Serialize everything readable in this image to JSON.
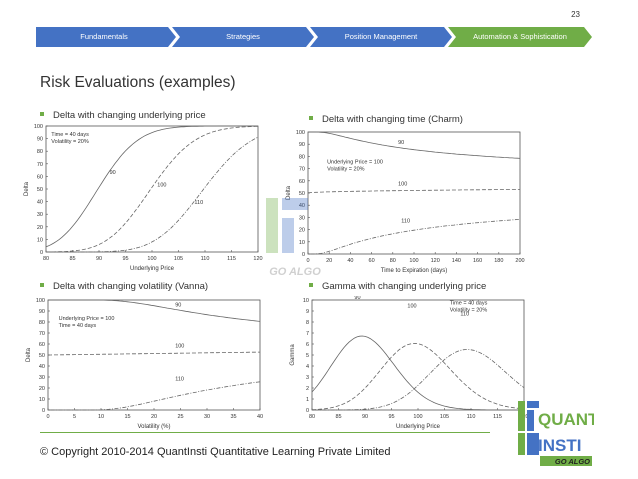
{
  "page_number": "23",
  "nav": {
    "items": [
      {
        "label": "Fundamentals"
      },
      {
        "label": "Strategies"
      },
      {
        "label": "Position Management"
      },
      {
        "label": "Automation & Sophistication"
      }
    ],
    "active_index": 3,
    "colors": {
      "inactive": "#4472c4",
      "active": "#70ad47"
    }
  },
  "title": "Risk Evaluations (examples)",
  "bullets": [
    "Delta with changing underlying price",
    "Delta with changing time (Charm)",
    "Delta with changing volatility (Vanna)",
    "Gamma with changing underlying price"
  ],
  "charts": {
    "delta_price": {
      "ylabel": "Delta",
      "xlabel": "Underlying Price",
      "x_ticks": [
        "80",
        "85",
        "90",
        "95",
        "100",
        "105",
        "110",
        "115",
        "120"
      ],
      "y_ticks": [
        "0",
        "10",
        "20",
        "30",
        "40",
        "50",
        "60",
        "70",
        "80",
        "90",
        "100"
      ],
      "legend": [
        "Time = 40 days",
        "Volatility = 20%"
      ],
      "curve_labels": [
        "90",
        "100",
        "110"
      ]
    },
    "delta_time": {
      "ylabel": "Delta",
      "xlabel": "Time to Expiration (days)",
      "x_ticks": [
        "0",
        "20",
        "40",
        "60",
        "80",
        "100",
        "120",
        "140",
        "160",
        "180",
        "200"
      ],
      "y_ticks": [
        "0",
        "10",
        "20",
        "30",
        "40",
        "50",
        "60",
        "70",
        "80",
        "90",
        "100"
      ],
      "legend": [
        "Underlying Price = 100",
        "Volatility = 20%"
      ],
      "curve_labels": [
        "90",
        "100",
        "110"
      ]
    },
    "delta_vol": {
      "ylabel": "Delta",
      "xlabel": "Volatility (%)",
      "x_ticks": [
        "0",
        "5",
        "10",
        "15",
        "20",
        "25",
        "30",
        "35",
        "40"
      ],
      "y_ticks": [
        "0",
        "10",
        "20",
        "30",
        "40",
        "50",
        "60",
        "70",
        "80",
        "90",
        "100"
      ],
      "legend": [
        "Underlying Price = 100",
        "Time = 40 days"
      ],
      "curve_labels": [
        "90",
        "100",
        "110"
      ]
    },
    "gamma_price": {
      "ylabel": "Gamma",
      "xlabel": "Underlying Price",
      "x_ticks": [
        "80",
        "85",
        "90",
        "95",
        "100",
        "105",
        "110",
        "115",
        "120"
      ],
      "y_ticks": [
        "0",
        "1",
        "2",
        "3",
        "4",
        "5",
        "6",
        "7",
        "8",
        "9",
        "10"
      ],
      "legend": [
        "Time = 40 days",
        "Volatility = 20%"
      ],
      "curve_labels": [
        "90",
        "100",
        "110"
      ]
    }
  },
  "watermark_text": "GO ALGO",
  "copyright": "© Copyright 2010-2014 QuantInsti Quantitative Learning Private  Limited",
  "logo": {
    "line1": "QUANT",
    "line2": "INSTI",
    "tagline": "GO ALGO"
  }
}
